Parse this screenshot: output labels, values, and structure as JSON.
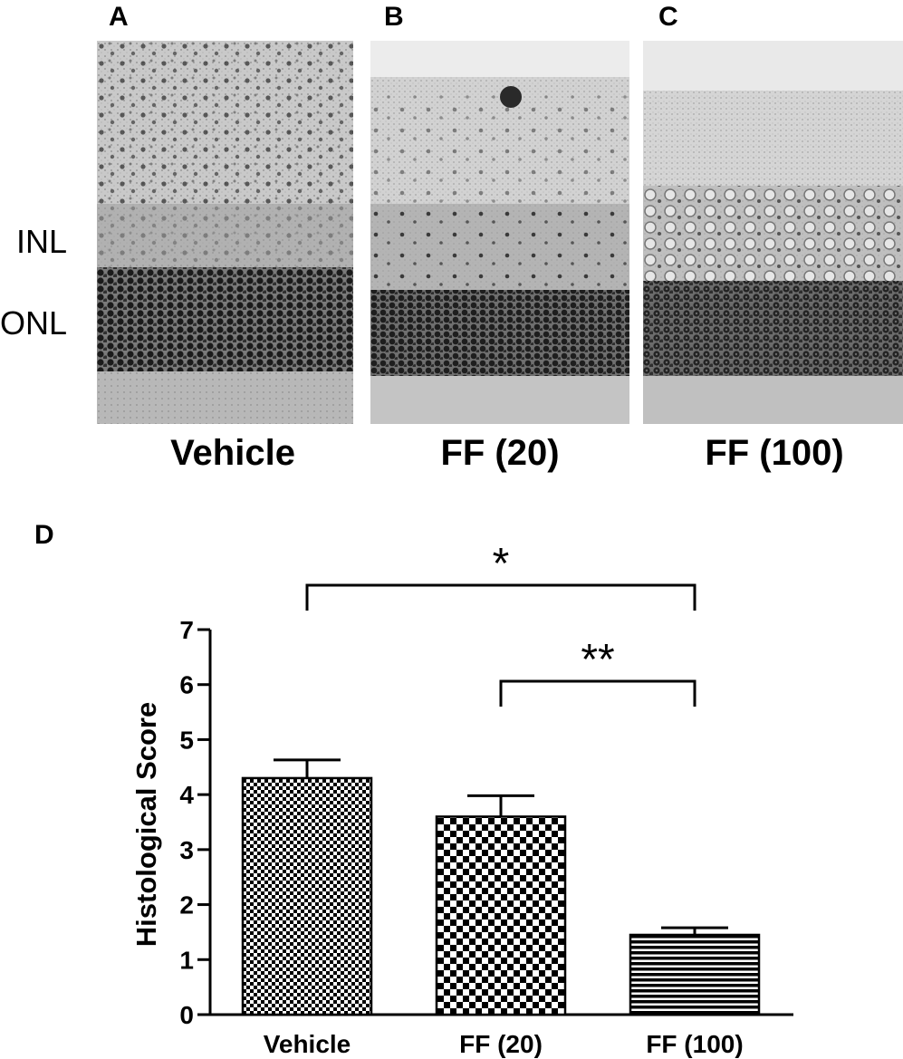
{
  "panels": {
    "A": "A",
    "B": "B",
    "C": "C",
    "D": "D"
  },
  "micrographs": [
    {
      "letter": "A",
      "label": "Vehicle"
    },
    {
      "letter": "B",
      "label": "FF (20)"
    },
    {
      "letter": "C",
      "label": "FF (100)"
    }
  ],
  "layer_labels": {
    "inl": "INL",
    "onl": "ONL"
  },
  "chart_data": {
    "type": "bar",
    "title": "",
    "xlabel": "",
    "ylabel": "Histological Score",
    "categories": [
      "Vehicle",
      "FF (20)",
      "FF (100)"
    ],
    "values": [
      4.3,
      3.6,
      1.45
    ],
    "errors": [
      0.33,
      0.38,
      0.13
    ],
    "ylim": [
      0,
      7
    ],
    "yticks": [
      0,
      1,
      2,
      3,
      4,
      5,
      6,
      7
    ],
    "fill_patterns": [
      "fine-checker",
      "coarse-checker",
      "horizontal-stripes"
    ],
    "significance": [
      {
        "from": "Vehicle",
        "to": "FF (100)",
        "label": "*"
      },
      {
        "from": "FF (20)",
        "to": "FF (100)",
        "label": "**"
      }
    ]
  }
}
